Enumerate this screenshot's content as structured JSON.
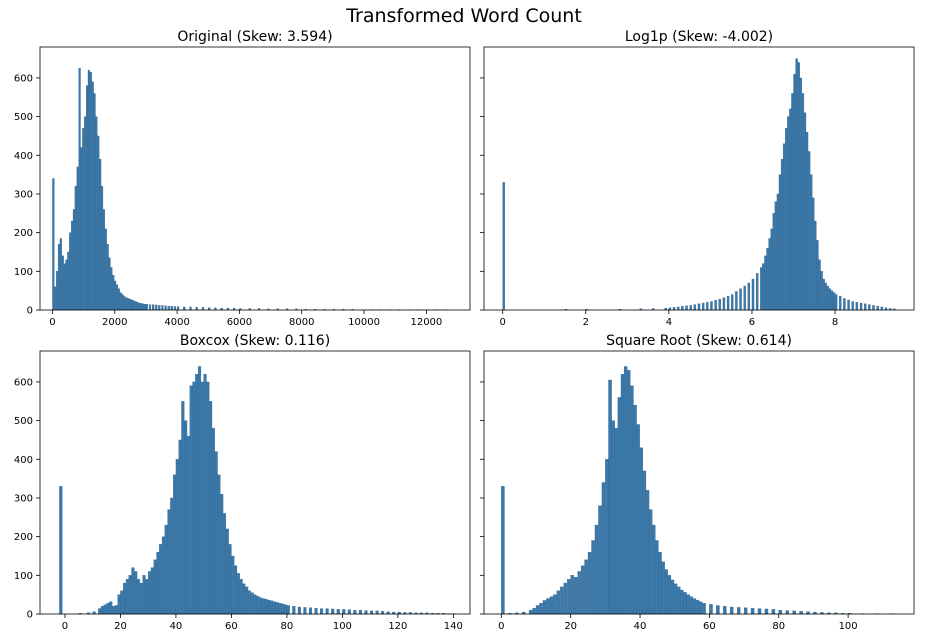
{
  "figure_title": "Transformed Word Count",
  "bar_color": "#3b79ab",
  "bar_edge": "#2f5f86",
  "chart_data": [
    {
      "type": "bar",
      "title": "Original (Skew: 3.594)",
      "xlabel": "",
      "ylabel": "",
      "xlim": [
        -400,
        13400
      ],
      "ylim": [
        0,
        680
      ],
      "xticks": [
        0,
        2000,
        4000,
        6000,
        8000,
        10000,
        12000
      ],
      "yticks": [
        0,
        100,
        200,
        300,
        400,
        500,
        600
      ],
      "ytick_labels_visible": true,
      "bin_width": 60,
      "bins": [
        [
          0,
          340
        ],
        [
          60,
          60
        ],
        [
          120,
          100
        ],
        [
          180,
          170
        ],
        [
          240,
          185
        ],
        [
          300,
          140
        ],
        [
          360,
          120
        ],
        [
          420,
          130
        ],
        [
          480,
          150
        ],
        [
          540,
          200
        ],
        [
          600,
          230
        ],
        [
          660,
          260
        ],
        [
          720,
          320
        ],
        [
          780,
          370
        ],
        [
          840,
          625
        ],
        [
          900,
          420
        ],
        [
          960,
          470
        ],
        [
          1020,
          500
        ],
        [
          1080,
          580
        ],
        [
          1140,
          620
        ],
        [
          1200,
          615
        ],
        [
          1260,
          590
        ],
        [
          1320,
          560
        ],
        [
          1380,
          500
        ],
        [
          1440,
          450
        ],
        [
          1500,
          390
        ],
        [
          1560,
          320
        ],
        [
          1620,
          260
        ],
        [
          1680,
          210
        ],
        [
          1740,
          170
        ],
        [
          1800,
          135
        ],
        [
          1860,
          110
        ],
        [
          1920,
          90
        ],
        [
          1980,
          75
        ],
        [
          2040,
          65
        ],
        [
          2100,
          55
        ],
        [
          2160,
          45
        ],
        [
          2220,
          40
        ],
        [
          2280,
          35
        ],
        [
          2340,
          32
        ],
        [
          2400,
          30
        ],
        [
          2460,
          28
        ],
        [
          2520,
          26
        ],
        [
          2580,
          24
        ],
        [
          2640,
          22
        ],
        [
          2700,
          20
        ],
        [
          2760,
          18
        ],
        [
          2820,
          17
        ],
        [
          2880,
          16
        ],
        [
          2940,
          15
        ],
        [
          3000,
          15
        ],
        [
          3100,
          14
        ],
        [
          3200,
          14
        ],
        [
          3300,
          13
        ],
        [
          3400,
          12
        ],
        [
          3500,
          12
        ],
        [
          3600,
          11
        ],
        [
          3700,
          10
        ],
        [
          3800,
          10
        ],
        [
          3900,
          9
        ],
        [
          4000,
          9
        ],
        [
          4200,
          8
        ],
        [
          4400,
          8
        ],
        [
          4600,
          7
        ],
        [
          4800,
          7
        ],
        [
          5000,
          6
        ],
        [
          5200,
          6
        ],
        [
          5400,
          5
        ],
        [
          5600,
          5
        ],
        [
          5800,
          5
        ],
        [
          6000,
          4
        ],
        [
          6300,
          4
        ],
        [
          6600,
          4
        ],
        [
          6900,
          3
        ],
        [
          7200,
          3
        ],
        [
          7500,
          3
        ],
        [
          7800,
          3
        ],
        [
          8100,
          2
        ],
        [
          8400,
          2
        ],
        [
          8700,
          2
        ],
        [
          9000,
          2
        ],
        [
          9300,
          2
        ],
        [
          9600,
          2
        ],
        [
          9900,
          1
        ],
        [
          10200,
          1
        ],
        [
          10500,
          1
        ],
        [
          10800,
          1
        ],
        [
          11100,
          1
        ],
        [
          11400,
          1
        ],
        [
          11700,
          1
        ],
        [
          12000,
          1
        ],
        [
          12300,
          1
        ],
        [
          12600,
          1
        ]
      ]
    },
    {
      "type": "bar",
      "title": "Log1p (Skew: -4.002)",
      "xlabel": "",
      "ylabel": "",
      "xlim": [
        -0.45,
        9.9
      ],
      "ylim": [
        0,
        680
      ],
      "xticks": [
        0,
        2,
        4,
        6,
        8
      ],
      "yticks": [
        0,
        100,
        200,
        300,
        400,
        500,
        600
      ],
      "ytick_labels_visible": false,
      "bin_width": 0.05,
      "bins": [
        [
          0,
          330
        ],
        [
          1.5,
          2
        ],
        [
          2.0,
          2
        ],
        [
          2.8,
          2
        ],
        [
          3.3,
          3
        ],
        [
          3.6,
          4
        ],
        [
          3.9,
          5
        ],
        [
          4.0,
          6
        ],
        [
          4.1,
          7
        ],
        [
          4.2,
          8
        ],
        [
          4.3,
          10
        ],
        [
          4.4,
          11
        ],
        [
          4.5,
          12
        ],
        [
          4.6,
          14
        ],
        [
          4.7,
          16
        ],
        [
          4.8,
          18
        ],
        [
          4.9,
          20
        ],
        [
          5.0,
          22
        ],
        [
          5.1,
          25
        ],
        [
          5.2,
          28
        ],
        [
          5.3,
          32
        ],
        [
          5.4,
          36
        ],
        [
          5.5,
          40
        ],
        [
          5.6,
          48
        ],
        [
          5.7,
          55
        ],
        [
          5.8,
          62
        ],
        [
          5.9,
          70
        ],
        [
          6.0,
          80
        ],
        [
          6.1,
          95
        ],
        [
          6.2,
          110
        ],
        [
          6.25,
          120
        ],
        [
          6.3,
          140
        ],
        [
          6.35,
          160
        ],
        [
          6.4,
          185
        ],
        [
          6.45,
          210
        ],
        [
          6.5,
          250
        ],
        [
          6.55,
          280
        ],
        [
          6.6,
          300
        ],
        [
          6.65,
          350
        ],
        [
          6.7,
          390
        ],
        [
          6.75,
          430
        ],
        [
          6.8,
          470
        ],
        [
          6.85,
          500
        ],
        [
          6.9,
          520
        ],
        [
          6.95,
          560
        ],
        [
          7.0,
          610
        ],
        [
          7.05,
          650
        ],
        [
          7.1,
          640
        ],
        [
          7.15,
          600
        ],
        [
          7.2,
          560
        ],
        [
          7.25,
          510
        ],
        [
          7.3,
          460
        ],
        [
          7.35,
          410
        ],
        [
          7.4,
          350
        ],
        [
          7.45,
          290
        ],
        [
          7.5,
          230
        ],
        [
          7.55,
          180
        ],
        [
          7.6,
          130
        ],
        [
          7.65,
          100
        ],
        [
          7.7,
          80
        ],
        [
          7.75,
          70
        ],
        [
          7.8,
          62
        ],
        [
          7.85,
          55
        ],
        [
          7.9,
          50
        ],
        [
          7.95,
          45
        ],
        [
          8.0,
          40
        ],
        [
          8.1,
          36
        ],
        [
          8.2,
          30
        ],
        [
          8.3,
          26
        ],
        [
          8.4,
          22
        ],
        [
          8.5,
          20
        ],
        [
          8.6,
          18
        ],
        [
          8.7,
          16
        ],
        [
          8.8,
          14
        ],
        [
          8.9,
          12
        ],
        [
          9.0,
          10
        ],
        [
          9.1,
          8
        ],
        [
          9.2,
          6
        ],
        [
          9.3,
          4
        ],
        [
          9.4,
          3
        ]
      ]
    },
    {
      "type": "bar",
      "title": "Boxcox (Skew: 0.116)",
      "xlabel": "",
      "ylabel": "",
      "xlim": [
        -9,
        146
      ],
      "ylim": [
        0,
        680
      ],
      "xticks": [
        0,
        20,
        40,
        60,
        80,
        100,
        120,
        140
      ],
      "yticks": [
        0,
        100,
        200,
        300,
        400,
        500,
        600
      ],
      "ytick_labels_visible": true,
      "bin_width": 1,
      "bins": [
        [
          -2,
          330
        ],
        [
          5,
          2
        ],
        [
          8,
          3
        ],
        [
          10,
          6
        ],
        [
          12,
          14
        ],
        [
          13,
          20
        ],
        [
          14,
          24
        ],
        [
          15,
          28
        ],
        [
          16,
          32
        ],
        [
          17,
          20
        ],
        [
          18,
          22
        ],
        [
          19,
          50
        ],
        [
          20,
          60
        ],
        [
          21,
          80
        ],
        [
          22,
          90
        ],
        [
          23,
          100
        ],
        [
          24,
          120
        ],
        [
          25,
          110
        ],
        [
          26,
          90
        ],
        [
          27,
          80
        ],
        [
          28,
          100
        ],
        [
          29,
          90
        ],
        [
          30,
          110
        ],
        [
          31,
          120
        ],
        [
          32,
          140
        ],
        [
          33,
          160
        ],
        [
          34,
          180
        ],
        [
          35,
          200
        ],
        [
          36,
          230
        ],
        [
          37,
          270
        ],
        [
          38,
          300
        ],
        [
          39,
          360
        ],
        [
          40,
          400
        ],
        [
          41,
          450
        ],
        [
          42,
          550
        ],
        [
          43,
          500
        ],
        [
          44,
          460
        ],
        [
          45,
          590
        ],
        [
          46,
          600
        ],
        [
          47,
          620
        ],
        [
          48,
          640
        ],
        [
          49,
          600
        ],
        [
          50,
          620
        ],
        [
          51,
          600
        ],
        [
          52,
          550
        ],
        [
          53,
          480
        ],
        [
          54,
          420
        ],
        [
          55,
          360
        ],
        [
          56,
          310
        ],
        [
          57,
          260
        ],
        [
          58,
          220
        ],
        [
          59,
          180
        ],
        [
          60,
          150
        ],
        [
          61,
          125
        ],
        [
          62,
          105
        ],
        [
          63,
          90
        ],
        [
          64,
          78
        ],
        [
          65,
          70
        ],
        [
          66,
          60
        ],
        [
          67,
          55
        ],
        [
          68,
          50
        ],
        [
          69,
          46
        ],
        [
          70,
          42
        ],
        [
          71,
          40
        ],
        [
          72,
          38
        ],
        [
          73,
          36
        ],
        [
          74,
          34
        ],
        [
          75,
          32
        ],
        [
          76,
          30
        ],
        [
          77,
          28
        ],
        [
          78,
          26
        ],
        [
          79,
          24
        ],
        [
          80,
          22
        ],
        [
          82,
          20
        ],
        [
          84,
          18
        ],
        [
          86,
          17
        ],
        [
          88,
          16
        ],
        [
          90,
          15
        ],
        [
          92,
          14
        ],
        [
          94,
          14
        ],
        [
          96,
          13
        ],
        [
          98,
          12
        ],
        [
          100,
          12
        ],
        [
          102,
          11
        ],
        [
          104,
          10
        ],
        [
          106,
          10
        ],
        [
          108,
          9
        ],
        [
          110,
          8
        ],
        [
          112,
          8
        ],
        [
          114,
          7
        ],
        [
          116,
          6
        ],
        [
          118,
          5
        ],
        [
          120,
          5
        ],
        [
          122,
          4
        ],
        [
          124,
          4
        ],
        [
          126,
          3
        ],
        [
          128,
          3
        ],
        [
          130,
          3
        ],
        [
          132,
          2
        ],
        [
          134,
          2
        ],
        [
          136,
          2
        ],
        [
          138,
          1
        ],
        [
          140,
          1
        ]
      ]
    },
    {
      "type": "bar",
      "title": "Square Root (Skew: 0.614)",
      "xlabel": "",
      "ylabel": "",
      "xlim": [
        -5,
        119
      ],
      "ylim": [
        0,
        680
      ],
      "xticks": [
        0,
        20,
        40,
        60,
        80,
        100
      ],
      "yticks": [
        0,
        100,
        200,
        300,
        400,
        500,
        600
      ],
      "ytick_labels_visible": false,
      "bin_width": 0.9,
      "bins": [
        [
          0,
          330
        ],
        [
          2,
          2
        ],
        [
          4,
          3
        ],
        [
          6,
          5
        ],
        [
          8,
          10
        ],
        [
          9,
          15
        ],
        [
          10,
          22
        ],
        [
          11,
          28
        ],
        [
          12,
          35
        ],
        [
          13,
          40
        ],
        [
          14,
          45
        ],
        [
          15,
          50
        ],
        [
          16,
          60
        ],
        [
          17,
          70
        ],
        [
          18,
          80
        ],
        [
          19,
          90
        ],
        [
          20,
          100
        ],
        [
          21,
          95
        ],
        [
          22,
          110
        ],
        [
          23,
          125
        ],
        [
          24,
          140
        ],
        [
          25,
          160
        ],
        [
          26,
          190
        ],
        [
          27,
          230
        ],
        [
          28,
          280
        ],
        [
          29,
          340
        ],
        [
          30,
          400
        ],
        [
          30.9,
          605
        ],
        [
          31.8,
          500
        ],
        [
          32.7,
          480
        ],
        [
          33.6,
          560
        ],
        [
          34.5,
          620
        ],
        [
          35.4,
          640
        ],
        [
          36.3,
          630
        ],
        [
          37.2,
          590
        ],
        [
          38.1,
          540
        ],
        [
          39,
          490
        ],
        [
          39.9,
          430
        ],
        [
          40.8,
          370
        ],
        [
          41.7,
          320
        ],
        [
          42.6,
          270
        ],
        [
          43.5,
          230
        ],
        [
          44.4,
          190
        ],
        [
          45.3,
          160
        ],
        [
          46.2,
          135
        ],
        [
          47.1,
          115
        ],
        [
          48,
          100
        ],
        [
          48.9,
          88
        ],
        [
          49.8,
          78
        ],
        [
          50.7,
          70
        ],
        [
          51.6,
          62
        ],
        [
          52.5,
          56
        ],
        [
          53.4,
          50
        ],
        [
          54.3,
          45
        ],
        [
          55.2,
          40
        ],
        [
          56.1,
          36
        ],
        [
          57,
          32
        ],
        [
          58,
          28
        ],
        [
          60,
          25
        ],
        [
          62,
          22
        ],
        [
          64,
          20
        ],
        [
          66,
          18
        ],
        [
          68,
          17
        ],
        [
          70,
          16
        ],
        [
          72,
          15
        ],
        [
          74,
          14
        ],
        [
          76,
          13
        ],
        [
          78,
          12
        ],
        [
          80,
          10
        ],
        [
          82,
          9
        ],
        [
          84,
          8
        ],
        [
          86,
          7
        ],
        [
          88,
          6
        ],
        [
          90,
          5
        ],
        [
          92,
          4
        ],
        [
          94,
          3
        ],
        [
          96,
          3
        ],
        [
          98,
          2
        ],
        [
          100,
          2
        ],
        [
          104,
          1
        ],
        [
          108,
          1
        ],
        [
          112,
          1
        ]
      ]
    }
  ]
}
